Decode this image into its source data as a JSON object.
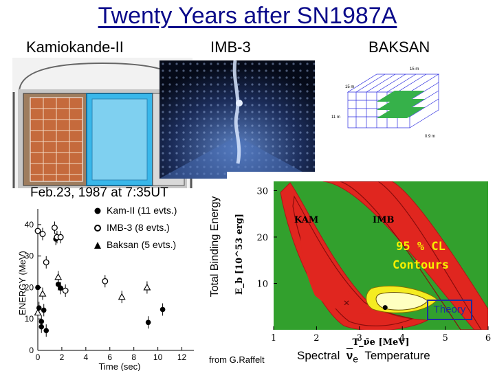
{
  "title": "Twenty Years after SN1987A",
  "detectors": {
    "kamiokande": "Kamiokande-II",
    "imb": "IMB-3",
    "baksan": "BAKSAN"
  },
  "baksan_dims": {
    "top": "15 m",
    "side": "15 m",
    "height": "11 m",
    "depth": "0.9 m"
  },
  "date_label": "Feb.23, 1987 at 7:35UT",
  "legend": {
    "kam": "Kam-II (11 evts.)",
    "imb": "IMB-3 (8 evts.)",
    "baksan": "Baksan (5 evts.)"
  },
  "events_chart": {
    "xlabel": "Time (sec)",
    "ylabel": "ENERGY (MeV)",
    "x_ticks": [
      "0",
      "2",
      "4",
      "6",
      "8",
      "10",
      "12"
    ],
    "y_ticks": [
      "0",
      "10",
      "20",
      "30",
      "40"
    ],
    "xlim": [
      0,
      13
    ],
    "ylim": [
      0,
      45
    ]
  },
  "binding_chart": {
    "ylabel_outer": "Total Binding Energy",
    "ylabel_inner": "E_b [10^53 erg]",
    "xlabel_inner": "T_ν̄e [MeV]",
    "x_ticks": [
      "1",
      "2",
      "3",
      "4",
      "5",
      "6"
    ],
    "y_ticks": [
      "10",
      "20",
      "30"
    ],
    "region_kam": "KAM",
    "region_imb": "IMB",
    "contours_label_1": "95 % CL",
    "contours_label_2": "Contours",
    "theory_label": "Theory"
  },
  "credit": "from G.Raffelt",
  "spectral_left": "Spectral",
  "nu_symbol": "ν",
  "nu_sub": "e",
  "spectral_right": "Temperature",
  "chart_data": [
    {
      "type": "scatter",
      "title": "",
      "xlabel": "Time (sec)",
      "ylabel": "ENERGY (MeV)",
      "xlim": [
        0,
        13
      ],
      "ylim": [
        0,
        45
      ],
      "series": [
        {
          "name": "Kam-II (11 evts.)",
          "marker": "filled-circle",
          "points": [
            [
              0.0,
              20.0
            ],
            [
              0.1,
              13.5
            ],
            [
              0.3,
              7.5
            ],
            [
              0.3,
              9.2
            ],
            [
              0.5,
              12.8
            ],
            [
              0.7,
              6.3
            ],
            [
              1.5,
              35.4
            ],
            [
              1.7,
              21.0
            ],
            [
              1.9,
              19.8
            ],
            [
              9.2,
              8.9
            ],
            [
              10.4,
              13.0
            ]
          ]
        },
        {
          "name": "IMB-3 (8 evts.)",
          "marker": "open-circle",
          "points": [
            [
              0.0,
              38.0
            ],
            [
              0.4,
              37.0
            ],
            [
              0.7,
              28.0
            ],
            [
              1.4,
              39.0
            ],
            [
              1.6,
              36.0
            ],
            [
              1.9,
              36.0
            ],
            [
              2.3,
              19.0
            ],
            [
              5.6,
              22.0
            ]
          ]
        },
        {
          "name": "Baksan (5 evts.)",
          "marker": "open-triangle",
          "points": [
            [
              0.0,
              12.0
            ],
            [
              0.4,
              18.0
            ],
            [
              1.7,
              23.3
            ],
            [
              7.0,
              17.0
            ],
            [
              9.1,
              20.0
            ]
          ]
        }
      ]
    },
    {
      "type": "area",
      "title": "",
      "xlabel": "T_ν̄e [MeV]",
      "ylabel": "E_b [10^53 erg]",
      "xlim": [
        1,
        6
      ],
      "ylim": [
        0,
        32
      ],
      "series": [
        {
          "name": "KAM",
          "region_center": [
            2.9,
            13
          ]
        },
        {
          "name": "IMB",
          "region_center": [
            4.5,
            18
          ]
        },
        {
          "name": "KAM best fit",
          "marker": "x",
          "points": [
            [
              2.7,
              5.8
            ]
          ]
        },
        {
          "name": "Theory",
          "marker": "filled-circle",
          "points": [
            [
              3.6,
              4.8
            ]
          ]
        }
      ]
    }
  ]
}
